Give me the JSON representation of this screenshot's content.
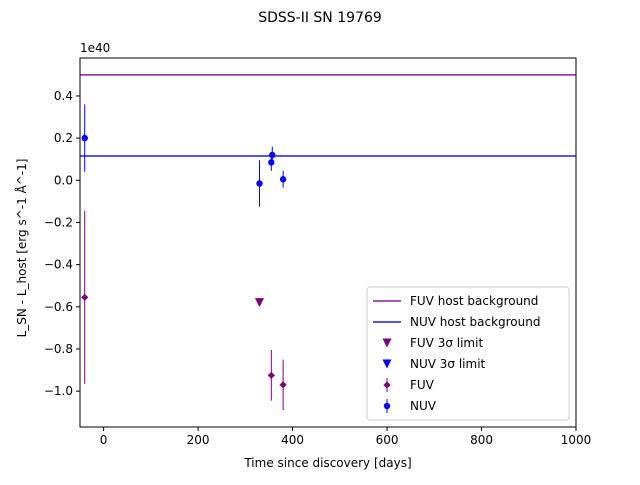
{
  "chart_data": {
    "type": "scatter",
    "title": "SDSS-II SN 19769",
    "xlabel": "Time since discovery [days]",
    "ylabel": "L_SN - L_host [erg s^-1 Å^-1]",
    "offset_label": "1e40",
    "xlim": [
      -50,
      1000
    ],
    "ylim": [
      -1.17,
      0.58
    ],
    "x_ticks": [
      0,
      200,
      400,
      600,
      800,
      1000
    ],
    "y_ticks": [
      -1.0,
      -0.8,
      -0.6,
      -0.4,
      -0.2,
      0.0,
      0.2,
      0.4
    ],
    "x_tick_labels": [
      "0",
      "200",
      "400",
      "600",
      "800",
      "1000"
    ],
    "y_tick_labels": [
      "−1.0",
      "−0.8",
      "−0.6",
      "−0.4",
      "−0.2",
      "0.0",
      "0.2",
      "0.4"
    ],
    "grid": false,
    "legend_position": "lower-right",
    "colors": {
      "fuv": "#7b007b",
      "nuv": "#0000ff"
    },
    "series": [
      {
        "name": "FUV host background",
        "kind": "hline",
        "y": 0.5,
        "color": "#8b1a9e"
      },
      {
        "name": "NUV host background",
        "kind": "hline",
        "y": 0.115,
        "color": "#2020e0"
      },
      {
        "name": "FUV 3σ limit",
        "kind": "upper-limit",
        "marker": "triangle-down",
        "color": "#7b007b",
        "points": [
          {
            "x": 330,
            "y": -0.58
          }
        ]
      },
      {
        "name": "NUV 3σ limit",
        "kind": "upper-limit",
        "marker": "triangle-down",
        "color": "#0000ff",
        "points": []
      },
      {
        "name": "FUV",
        "kind": "errorbar",
        "marker": "diamond",
        "color": "#7b007b",
        "points": [
          {
            "x": -40,
            "y": -0.555,
            "err": 0.41
          },
          {
            "x": 355,
            "y": -0.925,
            "err": 0.12
          },
          {
            "x": 380,
            "y": -0.97,
            "err": 0.12
          }
        ]
      },
      {
        "name": "NUV",
        "kind": "errorbar",
        "marker": "circle",
        "color": "#0000ff",
        "points": [
          {
            "x": -40,
            "y": 0.2,
            "err": 0.16
          },
          {
            "x": 330,
            "y": -0.015,
            "err": 0.11
          },
          {
            "x": 355,
            "y": 0.085,
            "err": 0.04
          },
          {
            "x": 357,
            "y": 0.12,
            "err": 0.04
          },
          {
            "x": 380,
            "y": 0.005,
            "err": 0.04
          }
        ]
      }
    ],
    "legend": [
      "FUV host background",
      "NUV host background",
      "FUV 3σ limit",
      "NUV 3σ limit",
      "FUV",
      "NUV"
    ]
  }
}
